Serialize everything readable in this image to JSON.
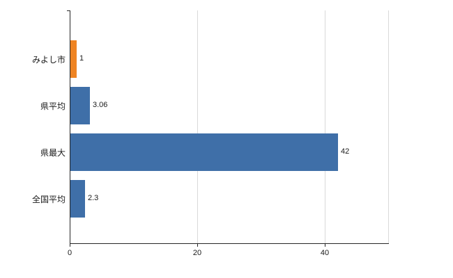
{
  "chart_data": {
    "type": "bar",
    "orientation": "horizontal",
    "title": "",
    "xlabel": "",
    "ylabel": "",
    "categories": [
      "みよし市",
      "県平均",
      "県最大",
      "全国平均"
    ],
    "values": [
      1,
      3.06,
      42,
      2.3
    ],
    "value_labels": [
      "1",
      "3.06",
      "42",
      "2.3"
    ],
    "bar_colors": [
      "#ef8423",
      "#3f6fa8",
      "#3f6fa8",
      "#3f6fa8"
    ],
    "x_ticks": [
      0,
      20,
      40
    ],
    "x_tick_labels": [
      "0",
      "20",
      "40"
    ],
    "xlim": [
      0,
      50
    ],
    "grid": true,
    "legend_position": "none"
  },
  "colors": {
    "background": "#ffffff",
    "axis": "#262626",
    "gridline": "#d9d9d9",
    "highlight_bar": "#ef8423",
    "default_bar": "#3f6fa8",
    "text": "#1a1a1a"
  }
}
